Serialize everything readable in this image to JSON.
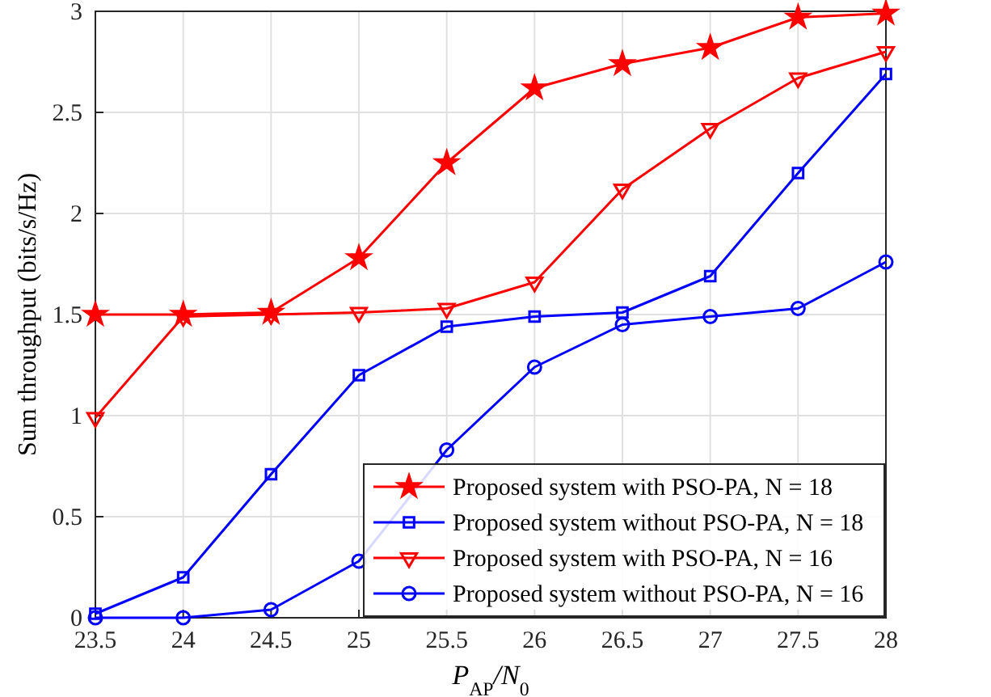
{
  "chart_data": {
    "type": "line",
    "xlabel": "P$_{AP}$/N$_{0}$",
    "ylabel": "Sum throughput (bits/s/Hz)",
    "x": [
      23.5,
      24,
      24.5,
      25,
      25.5,
      26,
      26.5,
      27,
      27.5,
      28
    ],
    "xlim": [
      23.5,
      28
    ],
    "xticks": [
      23.5,
      24,
      24.5,
      25,
      25.5,
      26,
      26.5,
      27,
      27.5,
      28
    ],
    "ylim": [
      0,
      3
    ],
    "yticks": [
      0,
      0.5,
      1,
      1.5,
      2,
      2.5,
      3
    ],
    "grid": true,
    "legend": "bottom right",
    "line_style": "solid",
    "series": [
      {
        "name": "Proposed system with PSO-PA, N = 18",
        "color": "#ff0000",
        "marker": "star",
        "values": [
          1.5,
          1.5,
          1.51,
          1.78,
          2.25,
          2.62,
          2.74,
          2.82,
          2.97,
          2.99
        ]
      },
      {
        "name": "Proposed system without PSO-PA, N = 18",
        "color": "#0000ff",
        "marker": "square",
        "values": [
          0.02,
          0.2,
          0.71,
          1.2,
          1.44,
          1.49,
          1.51,
          1.69,
          2.2,
          2.69
        ]
      },
      {
        "name": "Proposed system with PSO-PA, N = 16",
        "color": "#ff0000",
        "marker": "triangle",
        "values": [
          0.99,
          1.49,
          1.5,
          1.51,
          1.53,
          1.66,
          2.12,
          2.42,
          2.67,
          2.8
        ]
      },
      {
        "name": "Proposed system without PSO-PA, N = 16",
        "color": "#0000ff",
        "marker": "circle",
        "values": [
          0.0,
          0.0,
          0.04,
          0.28,
          0.83,
          1.24,
          1.45,
          1.49,
          1.53,
          1.76
        ]
      }
    ]
  }
}
